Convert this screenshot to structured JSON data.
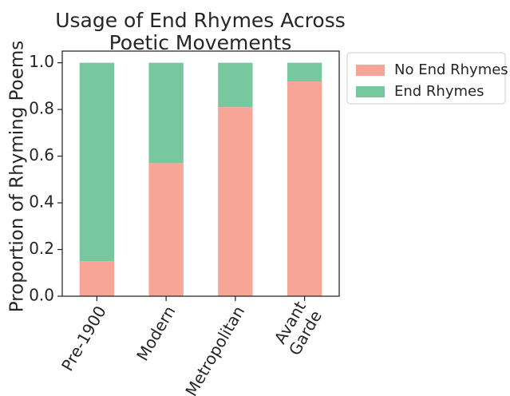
{
  "chart_data": {
    "type": "bar",
    "stacked": true,
    "title_lines": [
      "Usage of End Rhymes Across",
      "Poetic Movements"
    ],
    "xlabel": "",
    "ylabel": "Proportion of Rhyming Poems",
    "categories": [
      [
        "Pre-1900"
      ],
      [
        "Modern"
      ],
      [
        "Metropolitan"
      ],
      [
        "Avant",
        "Garde"
      ]
    ],
    "series": [
      {
        "name": "No End Rhymes",
        "color": "#f8a598",
        "values": [
          0.15,
          0.57,
          0.81,
          0.92
        ]
      },
      {
        "name": "End Rhymes",
        "color": "#78c89f",
        "values": [
          0.85,
          0.43,
          0.19,
          0.08
        ]
      }
    ],
    "ylim": [
      0,
      1.05
    ],
    "yticks": [
      "0.0",
      "0.2",
      "0.4",
      "0.6",
      "0.8",
      "1.0"
    ],
    "grid": false,
    "legend_position": "outside-top-right"
  }
}
